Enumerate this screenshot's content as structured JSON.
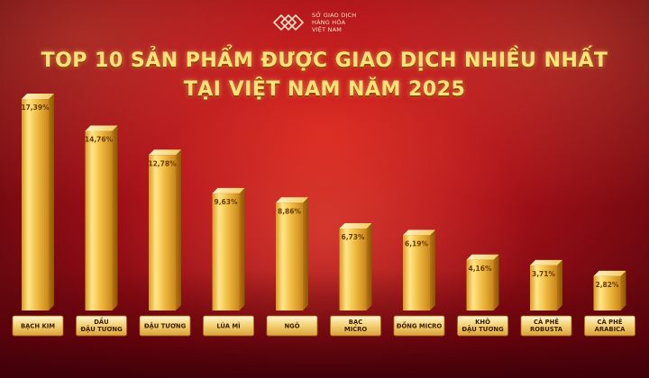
{
  "logo": {
    "line1": "SỞ GIAO DỊCH",
    "line2": "HÀNG HÓA",
    "line3": "VIỆT NAM",
    "icon": "sgd-logo-icon"
  },
  "title_line1": "TOP 10 SẢN PHẨM ĐƯỢC GIAO DỊCH NHIỀU NHẤT",
  "title_line2": "TẠI VIỆT NAM NĂM 2025",
  "colors": {
    "bar_gold": "#f3c34b",
    "bar_highlight": "#fff1b0",
    "title": "#ffe27a",
    "background": "#b3121a"
  },
  "chart_data": {
    "type": "bar",
    "unit": "%",
    "categories": [
      [
        "BẠCH KIM"
      ],
      [
        "DẦU",
        "ĐẬU TƯƠNG"
      ],
      [
        "ĐẬU TƯƠNG"
      ],
      [
        "LÚA MÌ"
      ],
      [
        "NGÔ"
      ],
      [
        "BẠC",
        "MICRO"
      ],
      [
        "ĐỒNG MICRO"
      ],
      [
        "KHÔ",
        "ĐẬU TƯƠNG"
      ],
      [
        "CÀ PHÊ",
        "ROBUSTA"
      ],
      [
        "CÀ PHÊ",
        "ARABICA"
      ]
    ],
    "values": [
      17.39,
      14.76,
      12.78,
      9.63,
      8.86,
      6.73,
      6.19,
      4.16,
      3.71,
      2.82
    ],
    "value_labels": [
      "17,39%",
      "14,76%",
      "12,78%",
      "9,63%",
      "8,86%",
      "6,73%",
      "6,19%",
      "4,16%",
      "3,71%",
      "2,82%"
    ],
    "ylim": [
      0,
      17.39
    ]
  }
}
